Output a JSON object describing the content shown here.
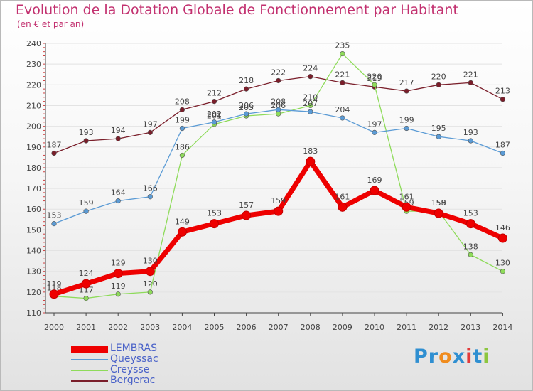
{
  "title": "Evolution de la Dotation Globale de Fonctionnement par Habitant",
  "subtitle": "(en € et par an)",
  "logo_text": "Proxiti",
  "colors": {
    "title": "#c2306f",
    "axis": "#444444",
    "grid": "#e3e3e3",
    "legend_text": "#4a62c8",
    "logo": [
      "#2f8fd1",
      "#2f8fd1",
      "#f08c1e",
      "#2f8fd1",
      "#e23a3a",
      "#2f8fd1",
      "#8cc63f"
    ]
  },
  "chart_data": {
    "type": "line",
    "x": [
      "2000",
      "2001",
      "2002",
      "2003",
      "2004",
      "2005",
      "2006",
      "2007",
      "2008",
      "2009",
      "2010",
      "2011",
      "2012",
      "2013",
      "2014"
    ],
    "ylim": [
      110,
      240
    ],
    "yticks": [
      "110",
      "120",
      "130",
      "140",
      "150",
      "160",
      "170",
      "180",
      "190",
      "200",
      "210",
      "220",
      "230",
      "240"
    ],
    "grid": true,
    "legend_position": "bottom-left",
    "series": [
      {
        "name": "Bergerac",
        "color": "#7a1e2a",
        "values": [
          187,
          193,
          194,
          197,
          208,
          212,
          218,
          222,
          224,
          221,
          219,
          217,
          220,
          221,
          213
        ]
      },
      {
        "name": "Creysse",
        "color": "#8edb5a",
        "values": [
          118,
          117,
          119,
          120,
          186,
          201,
          205,
          206,
          210,
          235,
          220,
          159,
          159,
          138,
          130
        ]
      },
      {
        "name": "Queyssac",
        "color": "#5b9bd5",
        "values": [
          153,
          159,
          164,
          166,
          199,
          202,
          206,
          208,
          207,
          204,
          197,
          199,
          195,
          193,
          187
        ]
      },
      {
        "name": "LEMBRAS",
        "color": "#ee0000",
        "values": [
          119,
          124,
          129,
          130,
          149,
          153,
          157,
          159,
          183,
          161,
          169,
          161,
          158,
          153,
          146
        ]
      }
    ],
    "point_labels": [
      [
        "187",
        "193",
        "194",
        "197",
        "208",
        "212",
        "218",
        "222",
        "224",
        "221",
        "219",
        "217",
        "220",
        "221",
        "213"
      ],
      [
        "118",
        "117",
        "119",
        "120",
        "186",
        "201",
        "205",
        "206",
        "210",
        "235",
        "220",
        "159",
        "159",
        "138",
        "130"
      ],
      [
        "153",
        "159",
        "164",
        "166",
        "199",
        "202",
        "206",
        "208",
        "207",
        "204",
        "197",
        "199",
        "195",
        "193",
        "187"
      ],
      [
        "119",
        "124",
        "129",
        "130",
        "149",
        "153",
        "157",
        "159",
        "183",
        "161",
        "169",
        "161",
        "158",
        "153",
        "146"
      ]
    ],
    "legend_order": [
      "LEMBRAS",
      "Queyssac",
      "Creysse",
      "Bergerac"
    ]
  }
}
